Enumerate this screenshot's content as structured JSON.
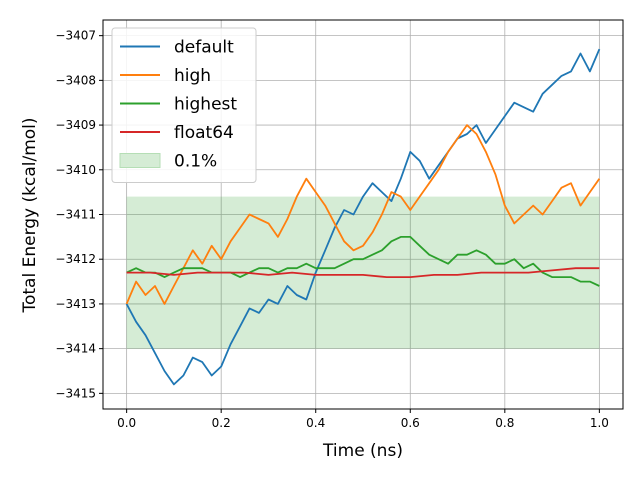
{
  "chart_data": {
    "type": "line",
    "xlabel": "Time (ns)",
    "ylabel": "Total Energy (kcal/mol)",
    "xlim": [
      -0.05,
      1.05
    ],
    "ylim": [
      -3415.35,
      -3406.65
    ],
    "xticks": [
      0.0,
      0.2,
      0.4,
      0.6,
      0.8,
      1.0
    ],
    "xtick_labels": [
      "0.0",
      "0.2",
      "0.4",
      "0.6",
      "0.8",
      "1.0"
    ],
    "yticks": [
      -3415,
      -3414,
      -3413,
      -3412,
      -3411,
      -3410,
      -3409,
      -3408,
      -3407
    ],
    "ytick_labels": [
      "−3415",
      "−3414",
      "−3413",
      "−3412",
      "−3411",
      "−3410",
      "−3409",
      "−3408",
      "−3407"
    ],
    "grid": true,
    "legend_position": "top-left",
    "band": {
      "name": "0.1%",
      "x_range": [
        0.0,
        1.0
      ],
      "y_range": [
        -3414.0,
        -3410.6
      ],
      "color": "#2ca02c"
    },
    "series": [
      {
        "name": "default",
        "color": "#1f77b4",
        "x": [
          0.0,
          0.02,
          0.04,
          0.06,
          0.08,
          0.1,
          0.12,
          0.14,
          0.16,
          0.18,
          0.2,
          0.22,
          0.24,
          0.26,
          0.28,
          0.3,
          0.32,
          0.34,
          0.36,
          0.38,
          0.4,
          0.42,
          0.44,
          0.46,
          0.48,
          0.5,
          0.52,
          0.54,
          0.56,
          0.58,
          0.6,
          0.62,
          0.64,
          0.66,
          0.68,
          0.7,
          0.72,
          0.74,
          0.76,
          0.78,
          0.8,
          0.82,
          0.84,
          0.86,
          0.88,
          0.9,
          0.92,
          0.94,
          0.96,
          0.98,
          1.0
        ],
        "y": [
          -3413.0,
          -3413.4,
          -3413.7,
          -3414.1,
          -3414.5,
          -3414.8,
          -3414.6,
          -3414.2,
          -3414.3,
          -3414.6,
          -3414.4,
          -3413.9,
          -3413.5,
          -3413.1,
          -3413.2,
          -3412.9,
          -3413.0,
          -3412.6,
          -3412.8,
          -3412.9,
          -3412.3,
          -3411.8,
          -3411.3,
          -3410.9,
          -3411.0,
          -3410.6,
          -3410.3,
          -3410.5,
          -3410.7,
          -3410.2,
          -3409.6,
          -3409.8,
          -3410.2,
          -3409.9,
          -3409.6,
          -3409.3,
          -3409.2,
          -3409.0,
          -3409.4,
          -3409.1,
          -3408.8,
          -3408.5,
          -3408.6,
          -3408.7,
          -3408.3,
          -3408.1,
          -3407.9,
          -3407.8,
          -3407.4,
          -3407.8,
          -3407.3
        ]
      },
      {
        "name": "high",
        "color": "#ff7f0e",
        "x": [
          0.0,
          0.02,
          0.04,
          0.06,
          0.08,
          0.1,
          0.12,
          0.14,
          0.16,
          0.18,
          0.2,
          0.22,
          0.24,
          0.26,
          0.28,
          0.3,
          0.32,
          0.34,
          0.36,
          0.38,
          0.4,
          0.42,
          0.44,
          0.46,
          0.48,
          0.5,
          0.52,
          0.54,
          0.56,
          0.58,
          0.6,
          0.62,
          0.64,
          0.66,
          0.68,
          0.7,
          0.72,
          0.74,
          0.76,
          0.78,
          0.8,
          0.82,
          0.84,
          0.86,
          0.88,
          0.9,
          0.92,
          0.94,
          0.96,
          0.98,
          1.0
        ],
        "y": [
          -3413.0,
          -3412.5,
          -3412.8,
          -3412.6,
          -3413.0,
          -3412.6,
          -3412.2,
          -3411.8,
          -3412.1,
          -3411.7,
          -3412.0,
          -3411.6,
          -3411.3,
          -3411.0,
          -3411.1,
          -3411.2,
          -3411.5,
          -3411.1,
          -3410.6,
          -3410.2,
          -3410.5,
          -3410.8,
          -3411.2,
          -3411.6,
          -3411.8,
          -3411.7,
          -3411.4,
          -3411.0,
          -3410.5,
          -3410.6,
          -3410.9,
          -3410.6,
          -3410.3,
          -3410.0,
          -3409.6,
          -3409.3,
          -3409.0,
          -3409.2,
          -3409.6,
          -3410.1,
          -3410.8,
          -3411.2,
          -3411.0,
          -3410.8,
          -3411.0,
          -3410.7,
          -3410.4,
          -3410.3,
          -3410.8,
          -3410.5,
          -3410.2
        ]
      },
      {
        "name": "highest",
        "color": "#2ca02c",
        "x": [
          0.0,
          0.02,
          0.04,
          0.06,
          0.08,
          0.1,
          0.12,
          0.14,
          0.16,
          0.18,
          0.2,
          0.22,
          0.24,
          0.26,
          0.28,
          0.3,
          0.32,
          0.34,
          0.36,
          0.38,
          0.4,
          0.42,
          0.44,
          0.46,
          0.48,
          0.5,
          0.52,
          0.54,
          0.56,
          0.58,
          0.6,
          0.62,
          0.64,
          0.66,
          0.68,
          0.7,
          0.72,
          0.74,
          0.76,
          0.78,
          0.8,
          0.82,
          0.84,
          0.86,
          0.88,
          0.9,
          0.92,
          0.94,
          0.96,
          0.98,
          1.0
        ],
        "y": [
          -3412.3,
          -3412.2,
          -3412.3,
          -3412.3,
          -3412.4,
          -3412.3,
          -3412.2,
          -3412.2,
          -3412.2,
          -3412.3,
          -3412.3,
          -3412.3,
          -3412.4,
          -3412.3,
          -3412.2,
          -3412.2,
          -3412.3,
          -3412.2,
          -3412.2,
          -3412.1,
          -3412.2,
          -3412.2,
          -3412.2,
          -3412.1,
          -3412.0,
          -3412.0,
          -3411.9,
          -3411.8,
          -3411.6,
          -3411.5,
          -3411.5,
          -3411.7,
          -3411.9,
          -3412.0,
          -3412.1,
          -3411.9,
          -3411.9,
          -3411.8,
          -3411.9,
          -3412.1,
          -3412.1,
          -3412.0,
          -3412.2,
          -3412.1,
          -3412.3,
          -3412.4,
          -3412.4,
          -3412.4,
          -3412.5,
          -3412.5,
          -3412.6
        ]
      },
      {
        "name": "float64",
        "color": "#d62728",
        "x": [
          0.0,
          0.05,
          0.1,
          0.15,
          0.2,
          0.25,
          0.3,
          0.35,
          0.4,
          0.45,
          0.5,
          0.55,
          0.6,
          0.65,
          0.7,
          0.75,
          0.8,
          0.85,
          0.9,
          0.95,
          1.0
        ],
        "y": [
          -3412.3,
          -3412.3,
          -3412.35,
          -3412.3,
          -3412.3,
          -3412.3,
          -3412.35,
          -3412.3,
          -3412.35,
          -3412.35,
          -3412.35,
          -3412.4,
          -3412.4,
          -3412.35,
          -3412.35,
          -3412.3,
          -3412.3,
          -3412.3,
          -3412.25,
          -3412.2,
          -3412.2
        ]
      }
    ]
  }
}
